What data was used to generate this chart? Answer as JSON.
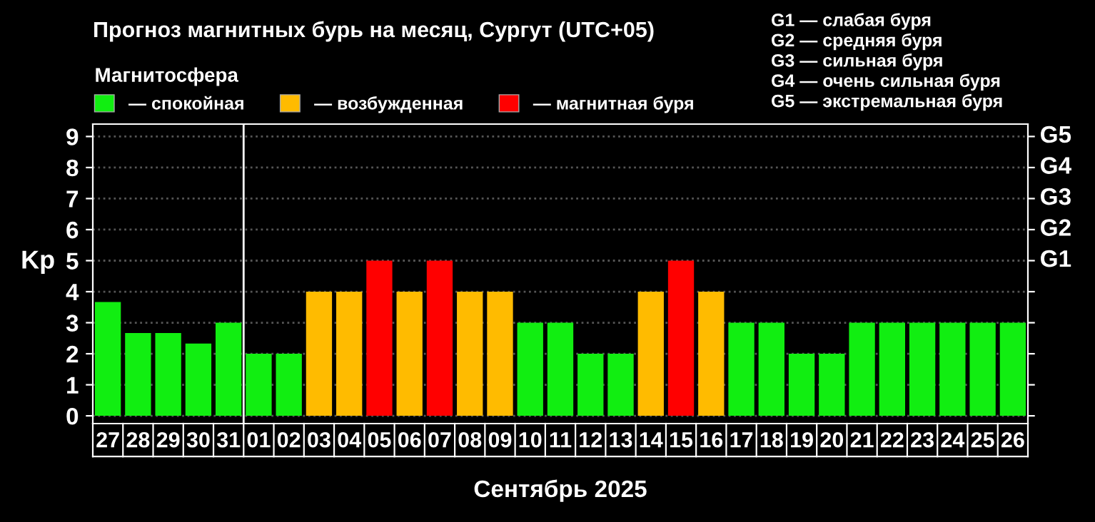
{
  "chart_data": {
    "type": "bar",
    "title": "Прогноз магнитных бурь на месяц, Сургут (UTC+05)",
    "legend_title": "Магнитосфера",
    "xlabel": "Сентябрь 2025",
    "ylabel": "Kp",
    "categories": [
      "27",
      "28",
      "29",
      "30",
      "31",
      "01",
      "02",
      "03",
      "04",
      "05",
      "06",
      "07",
      "08",
      "09",
      "10",
      "11",
      "12",
      "13",
      "14",
      "15",
      "16",
      "17",
      "18",
      "19",
      "20",
      "21",
      "22",
      "23",
      "24",
      "25",
      "26"
    ],
    "series": [
      {
        "name": "— спокойная",
        "color": "#11ee11",
        "values": [
          3.67,
          2.67,
          2.67,
          2.33,
          3,
          2,
          2,
          null,
          null,
          null,
          null,
          null,
          null,
          null,
          3,
          3,
          2,
          2,
          null,
          null,
          null,
          3,
          3,
          2,
          2,
          3,
          3,
          3,
          3,
          3,
          3
        ]
      },
      {
        "name": "— возбужденная",
        "color": "#ffbb00",
        "values": [
          null,
          null,
          null,
          null,
          null,
          null,
          null,
          4,
          4,
          null,
          4,
          null,
          4,
          4,
          null,
          null,
          null,
          null,
          4,
          null,
          4,
          null,
          null,
          null,
          null,
          null,
          null,
          null,
          null,
          null,
          null
        ]
      },
      {
        "name": "— магнитная буря",
        "color": "#ff0000",
        "values": [
          null,
          null,
          null,
          null,
          null,
          null,
          null,
          null,
          null,
          5,
          null,
          5,
          null,
          null,
          null,
          null,
          null,
          null,
          null,
          5,
          null,
          null,
          null,
          null,
          null,
          null,
          null,
          null,
          null,
          null,
          null
        ]
      }
    ],
    "ylim": [
      -0.25,
      9.4
    ],
    "yticks": [
      0,
      1,
      2,
      3,
      4,
      5,
      6,
      7,
      8,
      9
    ],
    "ref_lines": [
      {
        "axis": "x",
        "value": "01",
        "color": "#ffffff"
      }
    ],
    "grid": "y",
    "legend": "top left",
    "annotations": [
      "G1 — слабая буря",
      "G2 — средняя буря",
      "G3 — сильная буря",
      "G4 — очень сильная буря",
      "G5 — экстремальная буря",
      "G1",
      "G2",
      "G3",
      "G4",
      "G5"
    ]
  }
}
